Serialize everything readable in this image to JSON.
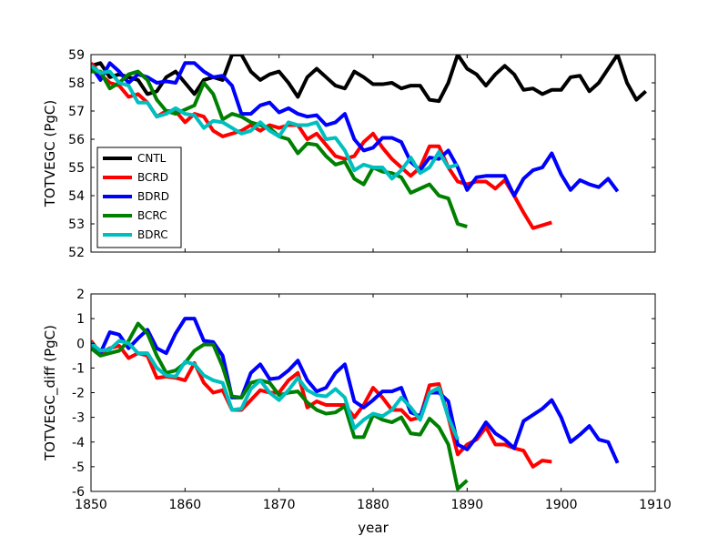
{
  "chart_data": [
    {
      "type": "line",
      "ylabel": "TOTVEGC (PgC)",
      "xlabel": "",
      "xlim": [
        1850,
        1910
      ],
      "ylim": [
        52,
        59
      ],
      "x_ticks": [
        1850,
        1860,
        1870,
        1880,
        1890,
        1900,
        1910
      ],
      "y_ticks": [
        52,
        53,
        54,
        55,
        56,
        57,
        58,
        59
      ],
      "show_x_tick_labels": false,
      "legend_position": "lower-left",
      "grid": false,
      "series": [
        {
          "name": "CNTL",
          "color": "#000000",
          "x": [
            1850,
            1851,
            1852,
            1853,
            1854,
            1855,
            1856,
            1857,
            1858,
            1859,
            1860,
            1861,
            1862,
            1863,
            1864,
            1865,
            1866,
            1867,
            1868,
            1869,
            1870,
            1871,
            1872,
            1873,
            1874,
            1875,
            1876,
            1877,
            1878,
            1879,
            1880,
            1881,
            1882,
            1883,
            1884,
            1885,
            1886,
            1887,
            1888,
            1889,
            1890,
            1891,
            1892,
            1893,
            1894,
            1895,
            1896,
            1897,
            1898,
            1899,
            1900,
            1901,
            1902,
            1903,
            1904,
            1905,
            1906,
            1907,
            1908,
            1909,
            1910
          ],
          "y": [
            58.6,
            58.7,
            58.2,
            58.3,
            58.2,
            58.1,
            57.6,
            57.7,
            58.2,
            58.4,
            58.0,
            57.6,
            58.1,
            58.2,
            58.1,
            59.0,
            59.0,
            58.4,
            58.1,
            58.3,
            58.4,
            58.0,
            57.5,
            58.2,
            58.5,
            58.2,
            57.9,
            57.8,
            58.4,
            58.2,
            57.95,
            57.95,
            58.0,
            57.8,
            57.9,
            57.9,
            57.4,
            57.35,
            58.0,
            59.0,
            58.5,
            58.3,
            57.9,
            58.3,
            58.6,
            58.3,
            57.75,
            57.8,
            57.6,
            57.75,
            57.75,
            58.2,
            58.25,
            57.7,
            58.0,
            58.5,
            59.0,
            58.0,
            57.4,
            57.7,
            null
          ]
        },
        {
          "name": "BCRD",
          "color": "#ff0000",
          "x": [
            1850,
            1851,
            1852,
            1853,
            1854,
            1855,
            1856,
            1857,
            1858,
            1859,
            1860,
            1861,
            1862,
            1863,
            1864,
            1865,
            1866,
            1867,
            1868,
            1869,
            1870,
            1871,
            1872,
            1873,
            1874,
            1875,
            1876,
            1877,
            1878,
            1879,
            1880,
            1881,
            1882,
            1883,
            1884,
            1885,
            1886,
            1887,
            1888,
            1889,
            1890,
            1891,
            1892,
            1893,
            1894,
            1895,
            1896,
            1897,
            1898,
            1899
          ],
          "y": [
            58.7,
            58.3,
            58.0,
            57.9,
            57.5,
            57.6,
            57.3,
            56.8,
            57.0,
            57.0,
            56.6,
            56.9,
            56.8,
            56.3,
            56.1,
            56.2,
            56.3,
            56.5,
            56.3,
            56.5,
            56.4,
            56.5,
            56.5,
            56.0,
            56.2,
            55.8,
            55.4,
            55.3,
            55.4,
            55.9,
            56.2,
            55.7,
            55.3,
            55.0,
            54.7,
            55.0,
            55.75,
            55.75,
            55.0,
            54.5,
            54.4,
            54.5,
            54.5,
            54.25,
            54.55,
            54.0,
            53.4,
            52.85,
            52.95,
            53.05
          ]
        },
        {
          "name": "BDRD",
          "color": "#0000ff",
          "x": [
            1850,
            1851,
            1852,
            1853,
            1854,
            1855,
            1856,
            1857,
            1858,
            1859,
            1860,
            1861,
            1862,
            1863,
            1864,
            1865,
            1866,
            1867,
            1868,
            1869,
            1870,
            1871,
            1872,
            1873,
            1874,
            1875,
            1876,
            1877,
            1878,
            1879,
            1880,
            1881,
            1882,
            1883,
            1884,
            1885,
            1886,
            1887,
            1888,
            1889,
            1890,
            1891,
            1892,
            1893,
            1894,
            1895,
            1896,
            1897,
            1898,
            1899,
            1900,
            1901,
            1902,
            1903,
            1904,
            1905,
            1906
          ],
          "y": [
            58.6,
            58.1,
            58.7,
            58.4,
            58.0,
            58.3,
            58.2,
            58.0,
            58.05,
            58.0,
            58.7,
            58.7,
            58.4,
            58.2,
            58.25,
            57.9,
            56.9,
            56.9,
            57.2,
            57.3,
            56.95,
            57.1,
            56.9,
            56.8,
            56.85,
            56.5,
            56.6,
            56.9,
            56.0,
            55.6,
            55.7,
            56.05,
            56.05,
            55.9,
            55.2,
            54.9,
            55.35,
            55.3,
            55.6,
            55.0,
            54.2,
            54.65,
            54.7,
            54.7,
            54.7,
            54.0,
            54.6,
            54.9,
            55.0,
            55.5,
            54.75,
            54.2,
            54.55,
            54.4,
            54.3,
            54.6,
            54.15
          ]
        },
        {
          "name": "BCRC",
          "color": "#008000",
          "x": [
            1850,
            1851,
            1852,
            1853,
            1854,
            1855,
            1856,
            1857,
            1858,
            1859,
            1860,
            1861,
            1862,
            1863,
            1864,
            1865,
            1866,
            1867,
            1868,
            1869,
            1870,
            1871,
            1872,
            1873,
            1874,
            1875,
            1876,
            1877,
            1878,
            1879,
            1880,
            1881,
            1882,
            1883,
            1884,
            1885,
            1886,
            1887,
            1888,
            1889,
            1890
          ],
          "y": [
            58.4,
            58.4,
            57.8,
            58.0,
            58.3,
            58.4,
            58.1,
            57.4,
            57.0,
            56.9,
            57.05,
            57.2,
            58.0,
            57.6,
            56.7,
            56.9,
            56.8,
            56.6,
            56.5,
            56.4,
            56.1,
            56.0,
            55.5,
            55.85,
            55.8,
            55.4,
            55.1,
            55.2,
            54.6,
            54.4,
            55.0,
            54.85,
            54.8,
            54.65,
            54.1,
            54.25,
            54.4,
            54.0,
            53.9,
            53.0,
            52.9
          ]
        },
        {
          "name": "BDRC",
          "color": "#00bfbf",
          "x": [
            1850,
            1851,
            1852,
            1853,
            1854,
            1855,
            1856,
            1857,
            1858,
            1859,
            1860,
            1861,
            1862,
            1863,
            1864,
            1865,
            1866,
            1867,
            1868,
            1869,
            1870,
            1871,
            1872,
            1873,
            1874,
            1875,
            1876,
            1877,
            1878,
            1879,
            1880,
            1881,
            1882,
            1883,
            1884,
            1885,
            1886,
            1887,
            1888,
            1889
          ],
          "y": [
            58.6,
            58.35,
            58.4,
            58.0,
            57.9,
            57.3,
            57.3,
            56.8,
            56.9,
            57.1,
            56.9,
            56.85,
            56.4,
            56.65,
            56.6,
            56.4,
            56.2,
            56.3,
            56.6,
            56.3,
            56.1,
            56.6,
            56.5,
            56.5,
            56.6,
            56.0,
            56.05,
            55.6,
            54.9,
            55.1,
            55.0,
            55.0,
            54.6,
            54.9,
            55.35,
            54.8,
            55.0,
            55.55,
            55.0,
            55.1
          ]
        }
      ],
      "legend": [
        {
          "label": "CNTL",
          "color": "#000000"
        },
        {
          "label": "BCRD",
          "color": "#ff0000"
        },
        {
          "label": "BDRD",
          "color": "#0000ff"
        },
        {
          "label": "BCRC",
          "color": "#008000"
        },
        {
          "label": "BDRC",
          "color": "#00bfbf"
        }
      ]
    },
    {
      "type": "line",
      "ylabel": "TOTVEGC_diff (PgC)",
      "xlabel": "year",
      "xlim": [
        1850,
        1910
      ],
      "ylim": [
        -6,
        2
      ],
      "x_ticks": [
        1850,
        1860,
        1870,
        1880,
        1890,
        1900,
        1910
      ],
      "y_ticks": [
        -6,
        -5,
        -4,
        -3,
        -2,
        -1,
        0,
        1,
        2
      ],
      "show_x_tick_labels": true,
      "grid": false,
      "series": [
        {
          "name": "BCRD",
          "color": "#ff0000",
          "x": [
            1850,
            1851,
            1852,
            1853,
            1854,
            1855,
            1856,
            1857,
            1858,
            1859,
            1860,
            1861,
            1862,
            1863,
            1864,
            1865,
            1866,
            1867,
            1868,
            1869,
            1870,
            1871,
            1872,
            1873,
            1874,
            1875,
            1876,
            1877,
            1878,
            1879,
            1880,
            1881,
            1882,
            1883,
            1884,
            1885,
            1886,
            1887,
            1888,
            1889,
            1890,
            1891,
            1892,
            1893,
            1894,
            1895,
            1896,
            1897,
            1898,
            1899
          ],
          "y": [
            0.1,
            -0.4,
            -0.2,
            -0.1,
            -0.6,
            -0.4,
            -0.5,
            -1.4,
            -1.35,
            -1.4,
            -1.5,
            -0.8,
            -1.6,
            -2.0,
            -1.9,
            -2.7,
            -2.7,
            -2.3,
            -1.9,
            -2.0,
            -2.0,
            -1.5,
            -1.2,
            -2.6,
            -2.35,
            -2.5,
            -2.5,
            -2.5,
            -3.0,
            -2.5,
            -1.8,
            -2.2,
            -2.7,
            -2.7,
            -3.1,
            -3.0,
            -1.7,
            -1.65,
            -3.0,
            -4.5,
            -4.1,
            -3.9,
            -3.4,
            -4.1,
            -4.1,
            -4.25,
            -4.35,
            -5.0,
            -4.75,
            -4.8
          ]
        },
        {
          "name": "BDRD",
          "color": "#0000ff",
          "x": [
            1850,
            1851,
            1852,
            1853,
            1854,
            1855,
            1856,
            1857,
            1858,
            1859,
            1860,
            1861,
            1862,
            1863,
            1864,
            1865,
            1866,
            1867,
            1868,
            1869,
            1870,
            1871,
            1872,
            1873,
            1874,
            1875,
            1876,
            1877,
            1878,
            1879,
            1880,
            1881,
            1882,
            1883,
            1884,
            1885,
            1886,
            1887,
            1888,
            1889,
            1890,
            1891,
            1892,
            1893,
            1894,
            1895,
            1896,
            1897,
            1898,
            1899,
            1900,
            1901,
            1902,
            1903,
            1904,
            1905,
            1906
          ],
          "y": [
            0.0,
            -0.4,
            0.45,
            0.35,
            -0.2,
            0.2,
            0.55,
            -0.2,
            -0.4,
            0.4,
            1.0,
            1.0,
            0.1,
            0.05,
            -0.5,
            -2.2,
            -2.2,
            -1.2,
            -0.85,
            -1.45,
            -1.4,
            -1.1,
            -0.7,
            -1.5,
            -1.95,
            -1.8,
            -1.2,
            -0.85,
            -2.35,
            -2.6,
            -2.3,
            -1.95,
            -1.95,
            -1.8,
            -2.8,
            -2.95,
            -2.0,
            -2.0,
            -2.35,
            -4.1,
            -4.3,
            -3.8,
            -3.2,
            -3.65,
            -3.9,
            -4.25,
            -3.15,
            -2.9,
            -2.65,
            -2.3,
            -3.0,
            -4.0,
            -3.7,
            -3.35,
            -3.9,
            -4.0,
            -4.85
          ]
        },
        {
          "name": "BCRC",
          "color": "#008000",
          "x": [
            1850,
            1851,
            1852,
            1853,
            1854,
            1855,
            1856,
            1857,
            1858,
            1859,
            1860,
            1861,
            1862,
            1863,
            1864,
            1865,
            1866,
            1867,
            1868,
            1869,
            1870,
            1871,
            1872,
            1873,
            1874,
            1875,
            1876,
            1877,
            1878,
            1879,
            1880,
            1881,
            1882,
            1883,
            1884,
            1885,
            1886,
            1887,
            1888,
            1889,
            1890
          ],
          "y": [
            -0.2,
            -0.5,
            -0.4,
            -0.3,
            0.1,
            0.8,
            0.4,
            -0.5,
            -1.2,
            -1.1,
            -0.8,
            -0.3,
            -0.05,
            -0.05,
            -0.95,
            -2.15,
            -2.2,
            -1.6,
            -1.5,
            -1.6,
            -2.1,
            -2.0,
            -1.95,
            -2.4,
            -2.7,
            -2.85,
            -2.8,
            -2.55,
            -3.8,
            -3.8,
            -2.9,
            -3.1,
            -3.2,
            -3.0,
            -3.65,
            -3.7,
            -3.05,
            -3.4,
            -4.1,
            -5.9,
            -5.55
          ]
        },
        {
          "name": "BDRC",
          "color": "#00bfbf",
          "x": [
            1850,
            1851,
            1852,
            1853,
            1854,
            1855,
            1856,
            1857,
            1858,
            1859,
            1860,
            1861,
            1862,
            1863,
            1864,
            1865,
            1866,
            1867,
            1868,
            1869,
            1870,
            1871,
            1872,
            1873,
            1874,
            1875,
            1876,
            1877,
            1878,
            1879,
            1880,
            1881,
            1882,
            1883,
            1884,
            1885,
            1886,
            1887,
            1888,
            1889
          ],
          "y": [
            0.0,
            -0.3,
            -0.25,
            0.1,
            0.0,
            -0.4,
            -0.4,
            -1.0,
            -1.3,
            -1.35,
            -0.75,
            -0.85,
            -1.3,
            -1.5,
            -1.6,
            -2.7,
            -2.65,
            -1.85,
            -1.5,
            -2.0,
            -2.3,
            -1.9,
            -1.4,
            -1.9,
            -2.1,
            -2.15,
            -1.85,
            -2.2,
            -3.45,
            -3.1,
            -2.85,
            -2.95,
            -2.7,
            -2.2,
            -2.6,
            -3.1,
            -2.0,
            -1.8,
            -3.0,
            -3.9
          ]
        }
      ]
    }
  ]
}
